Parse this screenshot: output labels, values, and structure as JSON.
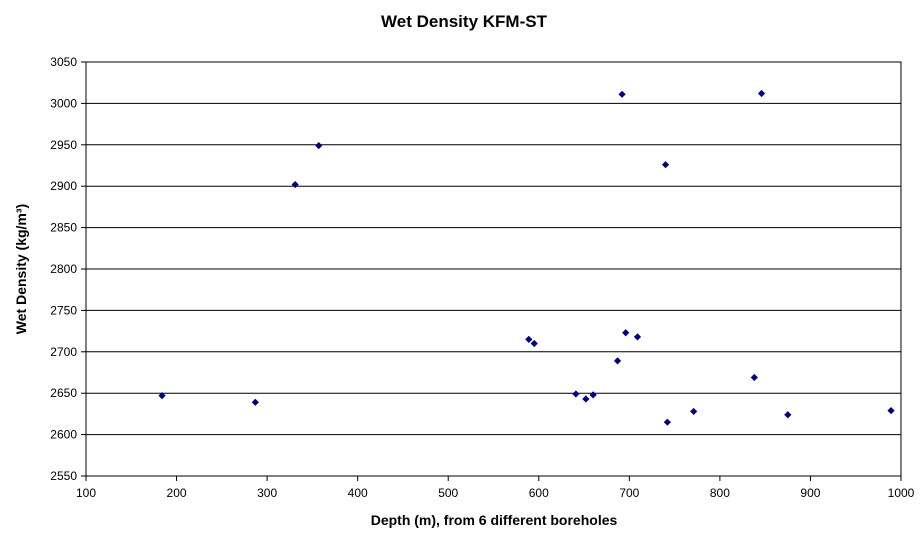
{
  "chart_data": {
    "type": "scatter",
    "title": "Wet Density KFM-ST",
    "xlabel": "Depth (m), from 6 different boreholes",
    "ylabel": "Wet Density (kg/m³)",
    "xlim": [
      100,
      1000
    ],
    "ylim": [
      2550,
      3050
    ],
    "xticks": [
      100,
      200,
      300,
      400,
      500,
      600,
      700,
      800,
      900,
      1000
    ],
    "yticks": [
      2550,
      2600,
      2650,
      2700,
      2750,
      2800,
      2850,
      2900,
      2950,
      3000,
      3050
    ],
    "grid": "horizontal major gridlines",
    "legend": "none",
    "marker": "diamond",
    "marker_color": "#000080",
    "points": [
      {
        "x": 184,
        "y": 2647
      },
      {
        "x": 287,
        "y": 2639
      },
      {
        "x": 331,
        "y": 2902
      },
      {
        "x": 357,
        "y": 2949
      },
      {
        "x": 589,
        "y": 2715
      },
      {
        "x": 595,
        "y": 2710
      },
      {
        "x": 641,
        "y": 2649
      },
      {
        "x": 652,
        "y": 2643
      },
      {
        "x": 660,
        "y": 2648
      },
      {
        "x": 687,
        "y": 2689
      },
      {
        "x": 692,
        "y": 3011
      },
      {
        "x": 696,
        "y": 2723
      },
      {
        "x": 709,
        "y": 2718
      },
      {
        "x": 740,
        "y": 2926
      },
      {
        "x": 742,
        "y": 2615
      },
      {
        "x": 771,
        "y": 2628
      },
      {
        "x": 838,
        "y": 2669
      },
      {
        "x": 846,
        "y": 3012
      },
      {
        "x": 875,
        "y": 2624
      },
      {
        "x": 989,
        "y": 2629
      }
    ]
  }
}
